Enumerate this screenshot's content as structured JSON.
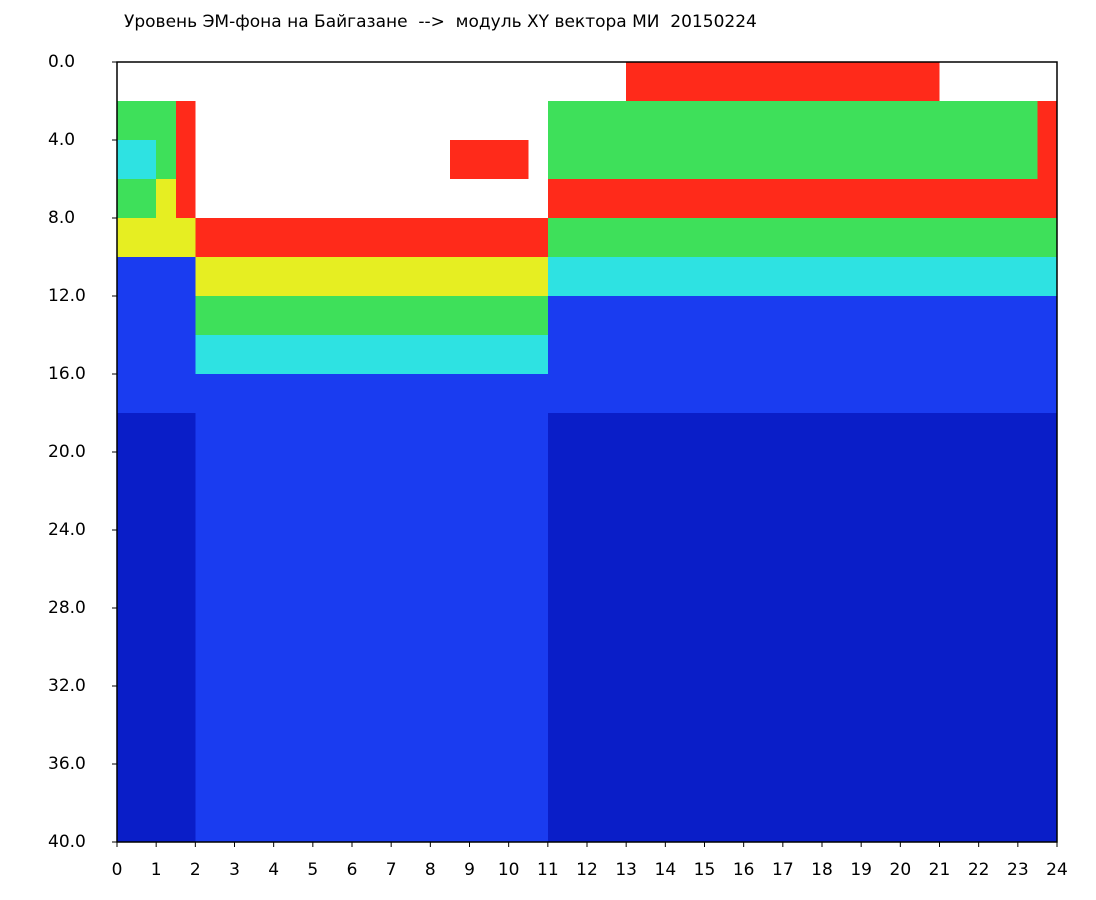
{
  "chart_data": {
    "type": "heatmap",
    "title": "Уровень ЭМ-фона на Байгазане  -->  модуль XY вектора МИ  20150224",
    "xlim": [
      0,
      24
    ],
    "xticks": [
      0,
      1,
      2,
      3,
      4,
      5,
      6,
      7,
      8,
      9,
      10,
      11,
      12,
      13,
      14,
      15,
      16,
      17,
      18,
      19,
      20,
      21,
      22,
      23,
      24
    ],
    "ylim": [
      0,
      40
    ],
    "y_inverted": true,
    "yticks": [
      {
        "value": 0,
        "label": "0.0"
      },
      {
        "value": 4,
        "label": "4.0"
      },
      {
        "value": 8,
        "label": "8.0"
      },
      {
        "value": 12,
        "label": "12.0"
      },
      {
        "value": 16,
        "label": "16.0"
      },
      {
        "value": 20,
        "label": "20.0"
      },
      {
        "value": 24,
        "label": "24.0"
      },
      {
        "value": 28,
        "label": "28.0"
      },
      {
        "value": 32,
        "label": "32.0"
      },
      {
        "value": 36,
        "label": "36.0"
      },
      {
        "value": 40,
        "label": "40.0"
      }
    ],
    "colormap": [
      "#ffffff",
      "#ff2a1a",
      "#e6ee22",
      "#3ee05a",
      "#2ee2e2",
      "#1a3cf0",
      "#0a1ec8"
    ],
    "z": [
      [
        0,
        0,
        0,
        0,
        0,
        0,
        0,
        0,
        0,
        0,
        0,
        0,
        0,
        0,
        0,
        0,
        0,
        0,
        0,
        0,
        0,
        0,
        0,
        0,
        0,
        0,
        1,
        1,
        1,
        1,
        1,
        1,
        1,
        1,
        1,
        1,
        1,
        1,
        1,
        1,
        1,
        1,
        0,
        0,
        0,
        0,
        0,
        0
      ],
      [
        3,
        3,
        3,
        1,
        0,
        0,
        0,
        0,
        0,
        0,
        0,
        0,
        0,
        0,
        0,
        0,
        0,
        0,
        0,
        0,
        0,
        0,
        3,
        3,
        3,
        3,
        3,
        3,
        3,
        3,
        3,
        3,
        3,
        3,
        3,
        3,
        3,
        3,
        3,
        3,
        3,
        3,
        3,
        3,
        3,
        3,
        3,
        1
      ],
      [
        4,
        4,
        3,
        1,
        0,
        0,
        0,
        0,
        0,
        0,
        0,
        0,
        0,
        0,
        0,
        0,
        0,
        1,
        1,
        1,
        1,
        0,
        3,
        3,
        3,
        3,
        3,
        3,
        3,
        3,
        3,
        3,
        3,
        3,
        3,
        3,
        3,
        3,
        3,
        3,
        3,
        3,
        3,
        3,
        3,
        3,
        3,
        1
      ],
      [
        3,
        3,
        2,
        1,
        0,
        0,
        0,
        0,
        0,
        0,
        0,
        0,
        0,
        0,
        0,
        0,
        0,
        0,
        0,
        0,
        0,
        0,
        1,
        1,
        1,
        1,
        1,
        1,
        1,
        1,
        1,
        1,
        1,
        1,
        1,
        1,
        1,
        1,
        1,
        1,
        1,
        1,
        1,
        1,
        1,
        1,
        1,
        1
      ],
      [
        2,
        2,
        2,
        2,
        1,
        1,
        1,
        1,
        1,
        1,
        1,
        1,
        1,
        1,
        1,
        1,
        1,
        1,
        1,
        1,
        1,
        1,
        3,
        3,
        3,
        3,
        3,
        3,
        3,
        3,
        3,
        3,
        3,
        3,
        3,
        3,
        3,
        3,
        3,
        3,
        3,
        3,
        3,
        3,
        3,
        3,
        3,
        3
      ],
      [
        5,
        5,
        5,
        5,
        2,
        2,
        2,
        2,
        2,
        2,
        2,
        2,
        2,
        2,
        2,
        2,
        2,
        2,
        2,
        2,
        2,
        2,
        4,
        4,
        4,
        4,
        4,
        4,
        4,
        4,
        4,
        4,
        4,
        4,
        4,
        4,
        4,
        4,
        4,
        4,
        4,
        4,
        4,
        4,
        4,
        4,
        4,
        4
      ],
      [
        5,
        5,
        5,
        5,
        3,
        3,
        3,
        3,
        3,
        3,
        3,
        3,
        3,
        3,
        3,
        3,
        3,
        3,
        3,
        3,
        3,
        3,
        5,
        5,
        5,
        5,
        5,
        5,
        5,
        5,
        5,
        5,
        5,
        5,
        5,
        5,
        5,
        5,
        5,
        5,
        5,
        5,
        5,
        5,
        5,
        5,
        5,
        5
      ],
      [
        5,
        5,
        5,
        5,
        4,
        4,
        4,
        4,
        4,
        4,
        4,
        4,
        4,
        4,
        4,
        4,
        4,
        4,
        4,
        4,
        4,
        4,
        5,
        5,
        5,
        5,
        5,
        5,
        5,
        5,
        5,
        5,
        5,
        5,
        5,
        5,
        5,
        5,
        5,
        5,
        5,
        5,
        5,
        5,
        5,
        5,
        5,
        5
      ],
      [
        5,
        5,
        5,
        5,
        5,
        5,
        5,
        5,
        5,
        5,
        5,
        5,
        5,
        5,
        5,
        5,
        5,
        5,
        5,
        5,
        5,
        5,
        5,
        5,
        5,
        5,
        5,
        5,
        5,
        5,
        5,
        5,
        5,
        5,
        5,
        5,
        5,
        5,
        5,
        5,
        5,
        5,
        5,
        5,
        5,
        5,
        5,
        5
      ],
      [
        6,
        6,
        6,
        6,
        5,
        5,
        5,
        5,
        5,
        5,
        5,
        5,
        5,
        5,
        5,
        5,
        5,
        5,
        5,
        5,
        5,
        5,
        6,
        6,
        6,
        6,
        6,
        6,
        6,
        6,
        6,
        6,
        6,
        6,
        6,
        6,
        6,
        6,
        6,
        6,
        6,
        6,
        6,
        6,
        6,
        6,
        6,
        6
      ],
      [
        6,
        6,
        6,
        6,
        5,
        5,
        5,
        5,
        5,
        5,
        5,
        5,
        5,
        5,
        5,
        5,
        5,
        5,
        5,
        5,
        5,
        5,
        6,
        6,
        6,
        6,
        6,
        6,
        6,
        6,
        6,
        6,
        6,
        6,
        6,
        6,
        6,
        6,
        6,
        6,
        6,
        6,
        6,
        6,
        6,
        6,
        6,
        6
      ],
      [
        6,
        6,
        6,
        6,
        5,
        5,
        5,
        5,
        5,
        5,
        5,
        5,
        5,
        5,
        5,
        5,
        5,
        5,
        5,
        5,
        5,
        5,
        6,
        6,
        6,
        6,
        6,
        6,
        6,
        6,
        6,
        6,
        6,
        6,
        6,
        6,
        6,
        6,
        6,
        6,
        6,
        6,
        6,
        6,
        6,
        6,
        6,
        6
      ],
      [
        6,
        6,
        6,
        6,
        5,
        5,
        5,
        5,
        5,
        5,
        5,
        5,
        5,
        5,
        5,
        5,
        5,
        5,
        5,
        5,
        5,
        5,
        6,
        6,
        6,
        6,
        6,
        6,
        6,
        6,
        6,
        6,
        6,
        6,
        6,
        6,
        6,
        6,
        6,
        6,
        6,
        6,
        6,
        6,
        6,
        6,
        6,
        6
      ],
      [
        6,
        6,
        6,
        6,
        5,
        5,
        5,
        5,
        5,
        5,
        5,
        5,
        5,
        5,
        5,
        5,
        5,
        5,
        5,
        5,
        5,
        5,
        6,
        6,
        6,
        6,
        6,
        6,
        6,
        6,
        6,
        6,
        6,
        6,
        6,
        6,
        6,
        6,
        6,
        6,
        6,
        6,
        6,
        6,
        6,
        6,
        6,
        6
      ],
      [
        6,
        6,
        6,
        6,
        5,
        5,
        5,
        5,
        5,
        5,
        5,
        5,
        5,
        5,
        5,
        5,
        5,
        5,
        5,
        5,
        5,
        5,
        6,
        6,
        6,
        6,
        6,
        6,
        6,
        6,
        6,
        6,
        6,
        6,
        6,
        6,
        6,
        6,
        6,
        6,
        6,
        6,
        6,
        6,
        6,
        6,
        6,
        6
      ],
      [
        6,
        6,
        6,
        6,
        5,
        5,
        5,
        5,
        5,
        5,
        5,
        5,
        5,
        5,
        5,
        5,
        5,
        5,
        5,
        5,
        5,
        5,
        6,
        6,
        6,
        6,
        6,
        6,
        6,
        6,
        6,
        6,
        6,
        6,
        6,
        6,
        6,
        6,
        6,
        6,
        6,
        6,
        6,
        6,
        6,
        6,
        6,
        6
      ],
      [
        6,
        6,
        6,
        6,
        5,
        5,
        5,
        5,
        5,
        5,
        5,
        5,
        5,
        5,
        5,
        5,
        5,
        5,
        5,
        5,
        5,
        5,
        6,
        6,
        6,
        6,
        6,
        6,
        6,
        6,
        6,
        6,
        6,
        6,
        6,
        6,
        6,
        6,
        6,
        6,
        6,
        6,
        6,
        6,
        6,
        6,
        6,
        6
      ],
      [
        6,
        6,
        6,
        6,
        5,
        5,
        5,
        5,
        5,
        5,
        5,
        5,
        5,
        5,
        5,
        5,
        5,
        5,
        5,
        5,
        5,
        5,
        6,
        6,
        6,
        6,
        6,
        6,
        6,
        6,
        6,
        6,
        6,
        6,
        6,
        6,
        6,
        6,
        6,
        6,
        6,
        6,
        6,
        6,
        6,
        6,
        6,
        6
      ],
      [
        6,
        6,
        6,
        6,
        5,
        5,
        5,
        5,
        5,
        5,
        5,
        5,
        5,
        5,
        5,
        5,
        5,
        5,
        5,
        5,
        5,
        5,
        6,
        6,
        6,
        6,
        6,
        6,
        6,
        6,
        6,
        6,
        6,
        6,
        6,
        6,
        6,
        6,
        6,
        6,
        6,
        6,
        6,
        6,
        6,
        6,
        6,
        6
      ],
      [
        6,
        6,
        6,
        6,
        5,
        5,
        5,
        5,
        5,
        5,
        5,
        5,
        5,
        5,
        5,
        5,
        5,
        5,
        5,
        5,
        5,
        5,
        6,
        6,
        6,
        6,
        6,
        6,
        6,
        6,
        6,
        6,
        6,
        6,
        6,
        6,
        6,
        6,
        6,
        6,
        6,
        6,
        6,
        6,
        6,
        6,
        6,
        6
      ]
    ]
  }
}
